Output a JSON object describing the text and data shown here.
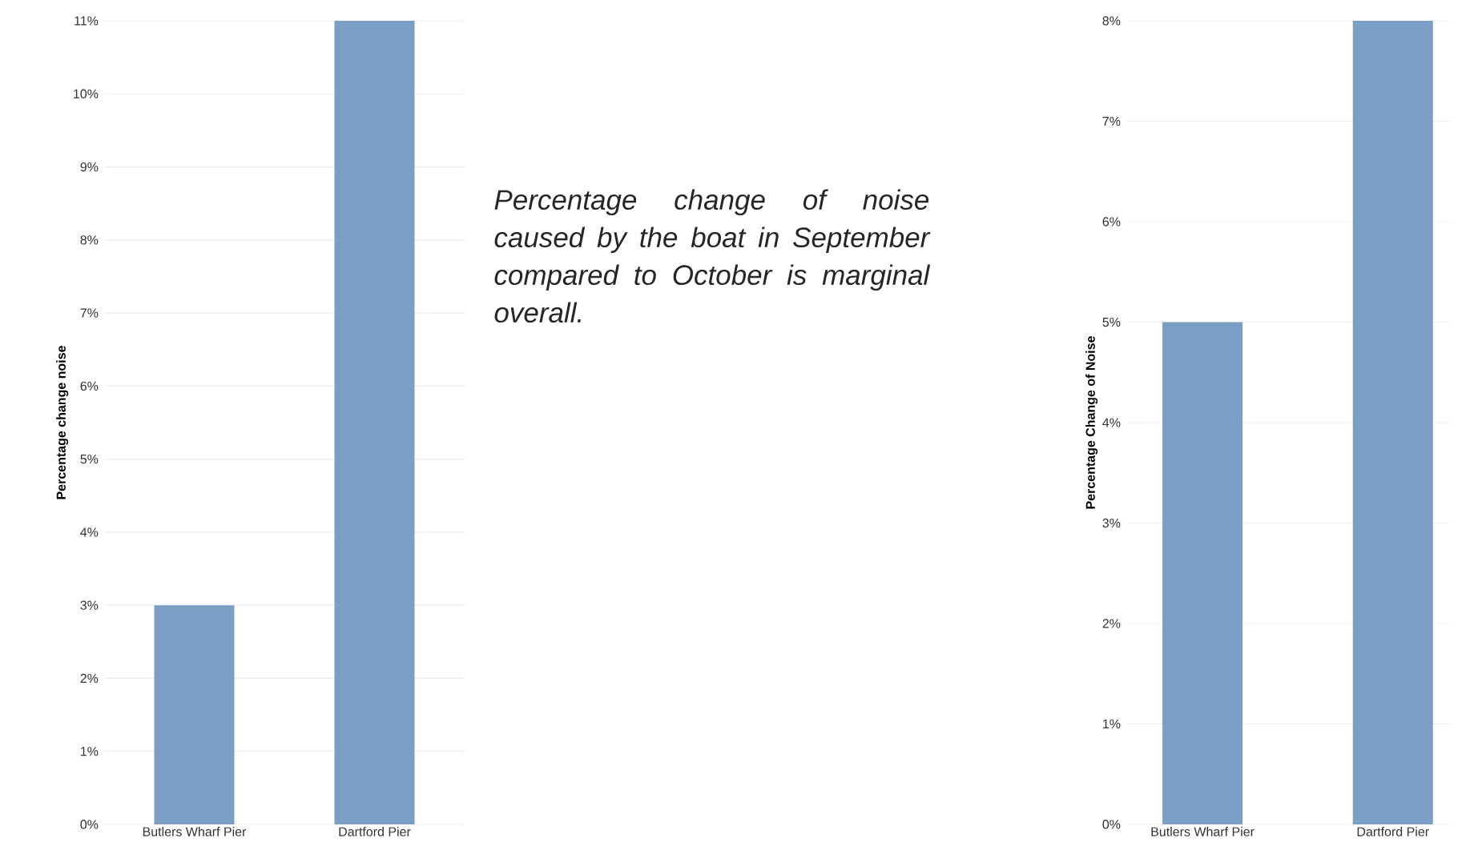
{
  "chart_data": [
    {
      "type": "bar",
      "ylabel": "Percentage change noise",
      "categories": [
        "Butlers Wharf Pier",
        "Dartford Pier"
      ],
      "values": [
        3,
        11
      ],
      "color": "#7b9ec4",
      "ylim": [
        0,
        11
      ],
      "yticks": [
        {
          "value": 0,
          "label": "0%"
        },
        {
          "value": 1,
          "label": "1%"
        },
        {
          "value": 2,
          "label": "2%"
        },
        {
          "value": 3,
          "label": "3%"
        },
        {
          "value": 4,
          "label": "4%"
        },
        {
          "value": 5,
          "label": "5%"
        },
        {
          "value": 6,
          "label": "6%"
        },
        {
          "value": 7,
          "label": "7%"
        },
        {
          "value": 8,
          "label": "8%"
        },
        {
          "value": 9,
          "label": "9%"
        },
        {
          "value": 10,
          "label": "10%"
        },
        {
          "value": 11,
          "label": "11%"
        }
      ],
      "grid": "y"
    },
    {
      "type": "other",
      "annotations": [
        "Percentage change of noise caused by the boat in September compared to October is marginal overall."
      ]
    },
    {
      "type": "bar",
      "ylabel": "Percentage Change of Noise",
      "categories": [
        "Butlers Wharf Pier",
        "Dartford Pier"
      ],
      "values": [
        5,
        8
      ],
      "color": "#7b9ec4",
      "ylim": [
        0,
        8
      ],
      "yticks": [
        {
          "value": 0,
          "label": "0%"
        },
        {
          "value": 1,
          "label": "1%"
        },
        {
          "value": 2,
          "label": "2%"
        },
        {
          "value": 3,
          "label": "3%"
        },
        {
          "value": 4,
          "label": "4%"
        },
        {
          "value": 5,
          "label": "5%"
        },
        {
          "value": 6,
          "label": "6%"
        },
        {
          "value": 7,
          "label": "7%"
        },
        {
          "value": 8,
          "label": "8%"
        }
      ],
      "grid": "y"
    }
  ]
}
